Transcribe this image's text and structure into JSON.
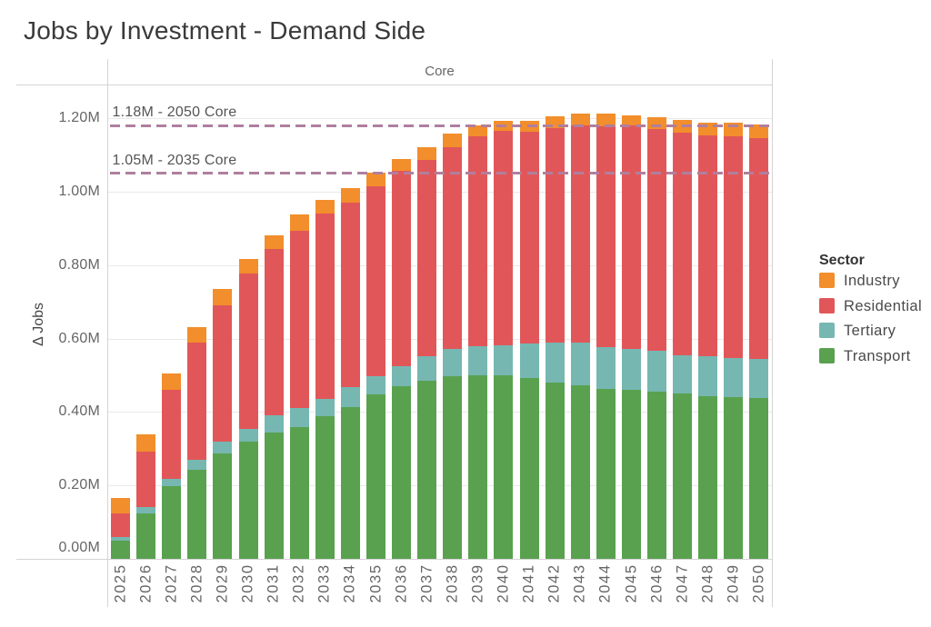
{
  "title": "Jobs by Investment - Demand Side",
  "panel_label": "Core",
  "y_axis": {
    "title": "Δ Jobs",
    "tick_labels": [
      "0.00M",
      "0.20M",
      "0.40M",
      "0.60M",
      "0.80M",
      "1.00M",
      "1.20M"
    ],
    "tick_values": [
      0,
      0.2,
      0.4,
      0.6,
      0.8,
      1.0,
      1.2
    ]
  },
  "ref_lines": [
    {
      "label": "1.18M - 2050 Core",
      "value": 1.18,
      "color": "#b07f9f"
    },
    {
      "label": "1.05M - 2035 Core",
      "value": 1.05,
      "color": "#b07f9f"
    }
  ],
  "legend": {
    "title": "Sector",
    "items": [
      {
        "label": "Industry",
        "color": "#F28E2B"
      },
      {
        "label": "Residential",
        "color": "#E15759"
      },
      {
        "label": "Tertiary",
        "color": "#76B7B2"
      },
      {
        "label": "Transport",
        "color": "#59A14F"
      }
    ]
  },
  "chart_data": {
    "type": "bar",
    "stacked": true,
    "title": "Jobs by Investment - Demand Side",
    "xlabel": "",
    "ylabel": "Δ Jobs",
    "ylim": [
      0,
      1.293
    ],
    "unit": "M jobs",
    "categories": [
      2025,
      2026,
      2027,
      2028,
      2029,
      2030,
      2031,
      2032,
      2033,
      2034,
      2035,
      2036,
      2037,
      2038,
      2039,
      2040,
      2041,
      2042,
      2043,
      2044,
      2045,
      2046,
      2047,
      2048,
      2049,
      2050
    ],
    "series": [
      {
        "name": "Transport",
        "color": "#59A14F",
        "values": [
          0.05,
          0.125,
          0.197,
          0.243,
          0.287,
          0.32,
          0.345,
          0.36,
          0.389,
          0.414,
          0.449,
          0.47,
          0.486,
          0.497,
          0.501,
          0.499,
          0.493,
          0.48,
          0.472,
          0.464,
          0.461,
          0.455,
          0.45,
          0.443,
          0.441,
          0.439
        ]
      },
      {
        "name": "Tertiary",
        "color": "#76B7B2",
        "values": [
          0.01,
          0.015,
          0.02,
          0.028,
          0.032,
          0.033,
          0.046,
          0.05,
          0.046,
          0.054,
          0.048,
          0.054,
          0.065,
          0.074,
          0.079,
          0.083,
          0.093,
          0.108,
          0.116,
          0.112,
          0.11,
          0.112,
          0.105,
          0.108,
          0.106,
          0.105
        ]
      },
      {
        "name": "Residential",
        "color": "#E15759",
        "values": [
          0.065,
          0.152,
          0.243,
          0.317,
          0.371,
          0.423,
          0.452,
          0.484,
          0.506,
          0.503,
          0.519,
          0.532,
          0.535,
          0.551,
          0.571,
          0.583,
          0.577,
          0.585,
          0.592,
          0.602,
          0.609,
          0.603,
          0.607,
          0.602,
          0.604,
          0.603
        ]
      },
      {
        "name": "Industry",
        "color": "#F28E2B",
        "values": [
          0.04,
          0.048,
          0.045,
          0.044,
          0.045,
          0.041,
          0.039,
          0.044,
          0.036,
          0.038,
          0.037,
          0.033,
          0.036,
          0.036,
          0.029,
          0.028,
          0.03,
          0.032,
          0.033,
          0.034,
          0.029,
          0.033,
          0.033,
          0.034,
          0.037,
          0.037
        ]
      }
    ]
  }
}
